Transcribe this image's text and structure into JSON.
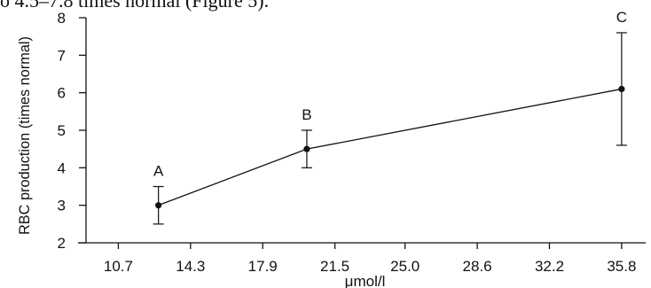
{
  "caption_fragment": "o 4.5–7.8 times normal (Figure 5).",
  "chart_data": {
    "type": "line",
    "xlabel": "μmol/l",
    "ylabel": "RBC production (times normal)",
    "x_ticks": [
      "10.7",
      "14.3",
      "17.9",
      "21.5",
      "25.0",
      "28.6",
      "32.2",
      "35.8"
    ],
    "y_ticks": [
      "2",
      "3",
      "4",
      "5",
      "6",
      "7",
      "8"
    ],
    "xlim": [
      9.0,
      37.0
    ],
    "ylim": [
      2,
      8
    ],
    "grid": false,
    "series": [
      {
        "points": [
          {
            "label": "A",
            "x": 12.7,
            "y": 3.0,
            "err_low": 2.5,
            "err_high": 3.5
          },
          {
            "label": "B",
            "x": 20.1,
            "y": 4.5,
            "err_low": 4.0,
            "err_high": 5.0
          },
          {
            "label": "C",
            "x": 35.8,
            "y": 6.1,
            "err_low": 4.6,
            "err_high": 7.6
          }
        ]
      }
    ]
  }
}
